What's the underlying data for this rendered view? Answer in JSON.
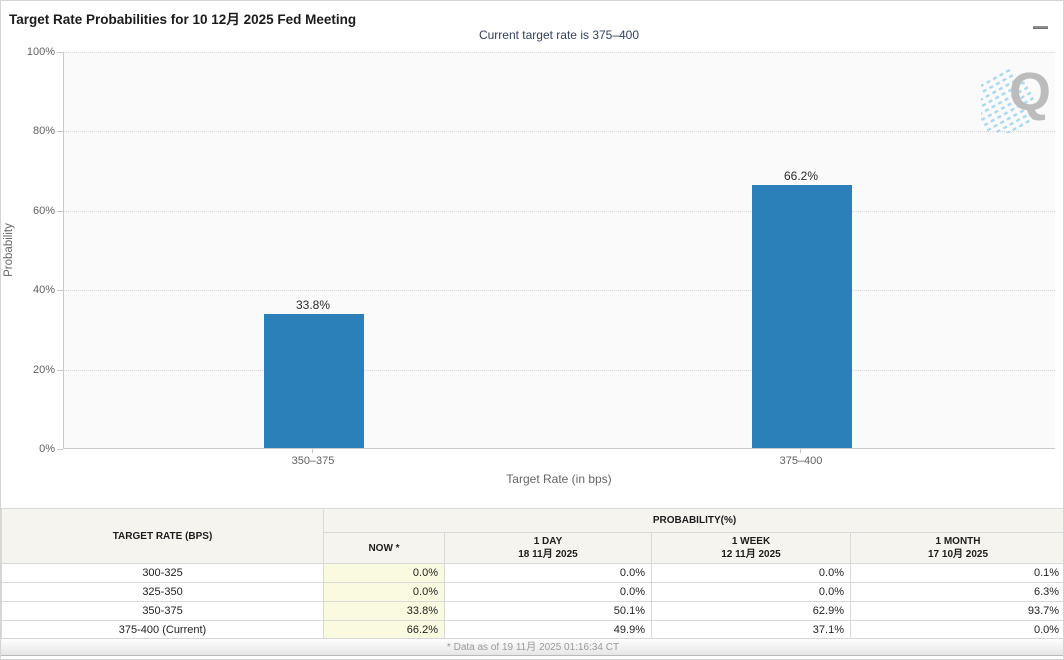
{
  "window": {
    "title": "Target Rate Probabilities for 10 12月 2025 Fed Meeting"
  },
  "chart": {
    "subtitle": "Current target rate is 375–400",
    "y_axis_title": "Probability",
    "y_ticks": [
      "100%",
      "80%",
      "60%",
      "40%",
      "20%",
      "0%"
    ],
    "x_axis_title": "Target Rate (in bps)",
    "watermark_letter": "Q"
  },
  "chart_data": {
    "type": "bar",
    "title": "Target Rate Probabilities for 10 12月 2025 Fed Meeting",
    "subtitle": "Current target rate is 375–400",
    "categories": [
      "350–375",
      "375–400"
    ],
    "values": [
      33.8,
      66.2
    ],
    "data_labels": [
      "33.8%",
      "66.2%"
    ],
    "xlabel": "Target Rate (in bps)",
    "ylabel": "Probability",
    "ylim": [
      0,
      100
    ],
    "y_tick_step": 20,
    "grid": true,
    "legend": false,
    "bar_color": "#2c80b9",
    "plot_background": "#fafafa"
  },
  "table": {
    "rate_header": "TARGET RATE (BPS)",
    "prob_header": "PROBABILITY(%)",
    "col_headers": [
      {
        "line1": "NOW *",
        "line2": ""
      },
      {
        "line1": "1 DAY",
        "line2": "18 11月 2025"
      },
      {
        "line1": "1 WEEK",
        "line2": "12 11月 2025"
      },
      {
        "line1": "1 MONTH",
        "line2": "17 10月 2025"
      }
    ],
    "rows": [
      {
        "rate": "300-325",
        "now": "0.0%",
        "one_day": "0.0%",
        "one_week": "0.0%",
        "one_month": "0.1%"
      },
      {
        "rate": "325-350",
        "now": "0.0%",
        "one_day": "0.0%",
        "one_week": "0.0%",
        "one_month": "6.3%"
      },
      {
        "rate": "350-375",
        "now": "33.8%",
        "one_day": "50.1%",
        "one_week": "62.9%",
        "one_month": "93.7%"
      },
      {
        "rate": "375-400 (Current)",
        "now": "66.2%",
        "one_day": "49.9%",
        "one_week": "37.1%",
        "one_month": "0.0%"
      }
    ]
  },
  "footer": {
    "note": "* Data as of 19 11月 2025 01:16:34 CT"
  }
}
